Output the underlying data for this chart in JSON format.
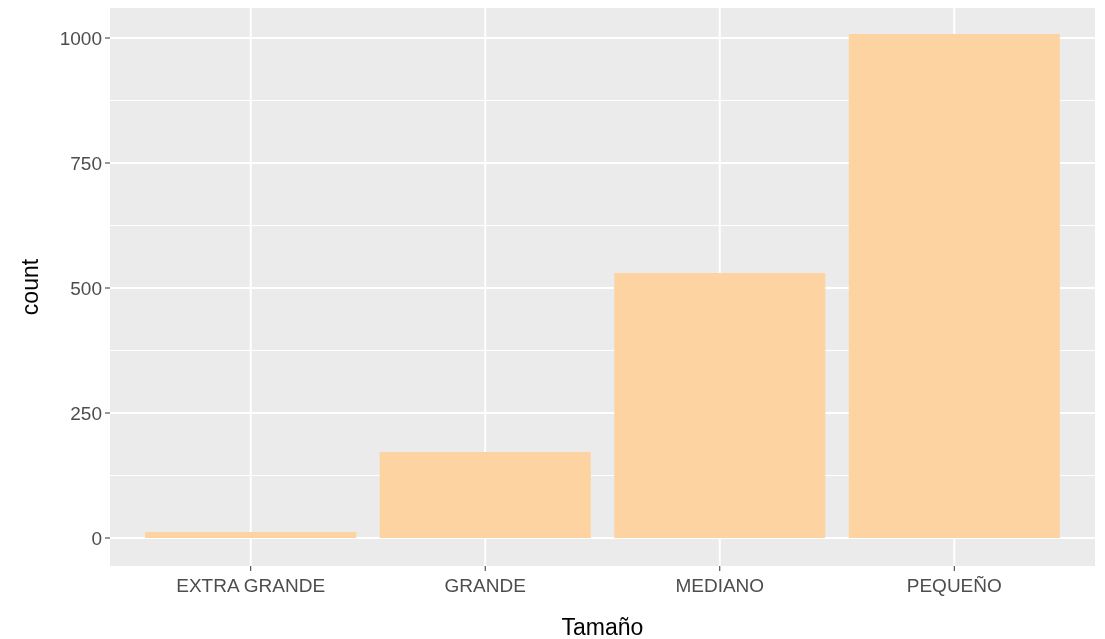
{
  "chart_data": {
    "type": "bar",
    "xlabel": "Tamaño",
    "ylabel": "count",
    "categories": [
      "EXTRA GRANDE",
      "GRANDE",
      "MEDIANO",
      "PEQUEÑO"
    ],
    "values": [
      12,
      172,
      530,
      1008
    ],
    "color": "#fdd3a2",
    "ylim": [
      -56,
      1060
    ],
    "yticks": [
      0,
      250,
      500,
      750,
      1000
    ],
    "grid": true
  }
}
